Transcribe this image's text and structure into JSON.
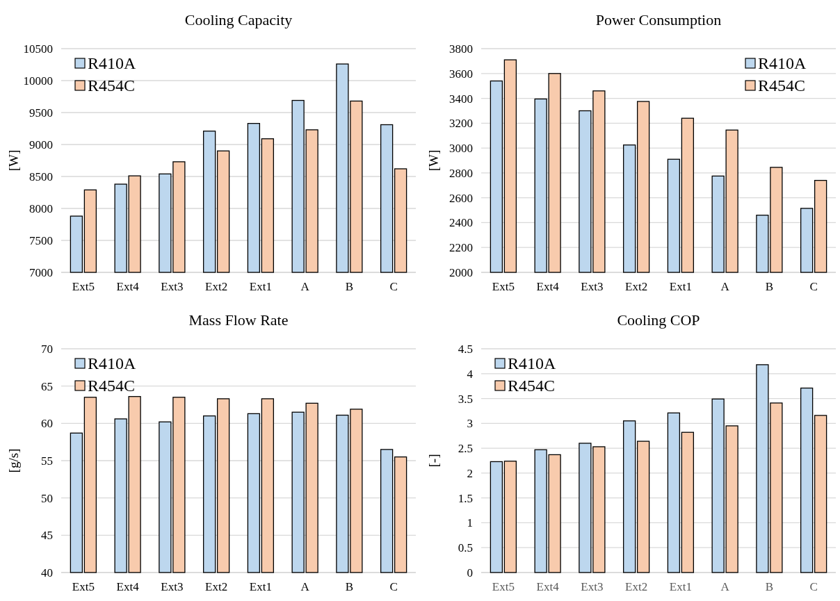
{
  "chart_data": [
    {
      "type": "bar",
      "title": "Cooling Capacity",
      "ylabel": "[W]",
      "categories": [
        "Ext5",
        "Ext4",
        "Ext3",
        "Ext2",
        "Ext1",
        "A",
        "B",
        "C"
      ],
      "series": [
        {
          "name": "R410A",
          "color": "#bdd7ee",
          "values": [
            7880,
            8380,
            8540,
            9210,
            9330,
            9690,
            10260,
            9310
          ]
        },
        {
          "name": "R454C",
          "color": "#f8cbad",
          "values": [
            8290,
            8510,
            8730,
            8900,
            9090,
            9230,
            9680,
            8620
          ]
        }
      ],
      "ylim": [
        7000,
        10500
      ],
      "yticks": [
        7000,
        7500,
        8000,
        8500,
        9000,
        9500,
        10000,
        10500
      ],
      "grid": "y",
      "legend": "top left"
    },
    {
      "type": "bar",
      "title": "Power Consumption",
      "ylabel": "[W]",
      "categories": [
        "Ext5",
        "Ext4",
        "Ext3",
        "Ext2",
        "Ext1",
        "A",
        "B",
        "C"
      ],
      "series": [
        {
          "name": "R410A",
          "color": "#bdd7ee",
          "values": [
            3540,
            3395,
            3300,
            3025,
            2910,
            2775,
            2460,
            2515
          ]
        },
        {
          "name": "R454C",
          "color": "#f8cbad",
          "values": [
            3710,
            3600,
            3460,
            3375,
            3240,
            3145,
            2845,
            2740
          ]
        }
      ],
      "ylim": [
        2000,
        3800
      ],
      "yticks": [
        2000,
        2200,
        2400,
        2600,
        2800,
        3000,
        3200,
        3400,
        3600,
        3800
      ],
      "grid": "y",
      "legend": "top right"
    },
    {
      "type": "bar",
      "title": "Mass Flow Rate",
      "ylabel": "[g/s]",
      "categories": [
        "Ext5",
        "Ext4",
        "Ext3",
        "Ext2",
        "Ext1",
        "A",
        "B",
        "C"
      ],
      "series": [
        {
          "name": "R410A",
          "color": "#bdd7ee",
          "values": [
            58.7,
            60.6,
            60.2,
            61.0,
            61.3,
            61.5,
            61.1,
            56.5
          ]
        },
        {
          "name": "R454C",
          "color": "#f8cbad",
          "values": [
            63.5,
            63.6,
            63.5,
            63.3,
            63.3,
            62.7,
            61.9,
            55.5
          ]
        }
      ],
      "ylim": [
        40,
        70
      ],
      "yticks": [
        40,
        45,
        50,
        55,
        60,
        65,
        70
      ],
      "grid": "y",
      "legend": "top left"
    },
    {
      "type": "bar",
      "title": "Cooling COP",
      "ylabel": "[-]",
      "categories": [
        "Ext5",
        "Ext4",
        "Ext3",
        "Ext2",
        "Ext1",
        "A",
        "B",
        "C"
      ],
      "series": [
        {
          "name": "R410A",
          "color": "#bdd7ee",
          "values": [
            2.23,
            2.47,
            2.6,
            3.05,
            3.21,
            3.49,
            4.18,
            3.71
          ]
        },
        {
          "name": "R454C",
          "color": "#f8cbad",
          "values": [
            2.24,
            2.37,
            2.53,
            2.64,
            2.82,
            2.95,
            3.41,
            3.16
          ]
        }
      ],
      "ylim": [
        0,
        4.5
      ],
      "yticks": [
        0,
        0.5,
        1,
        1.5,
        2,
        2.5,
        3,
        3.5,
        4,
        4.5
      ],
      "grid": "y",
      "legend": "top left"
    }
  ]
}
